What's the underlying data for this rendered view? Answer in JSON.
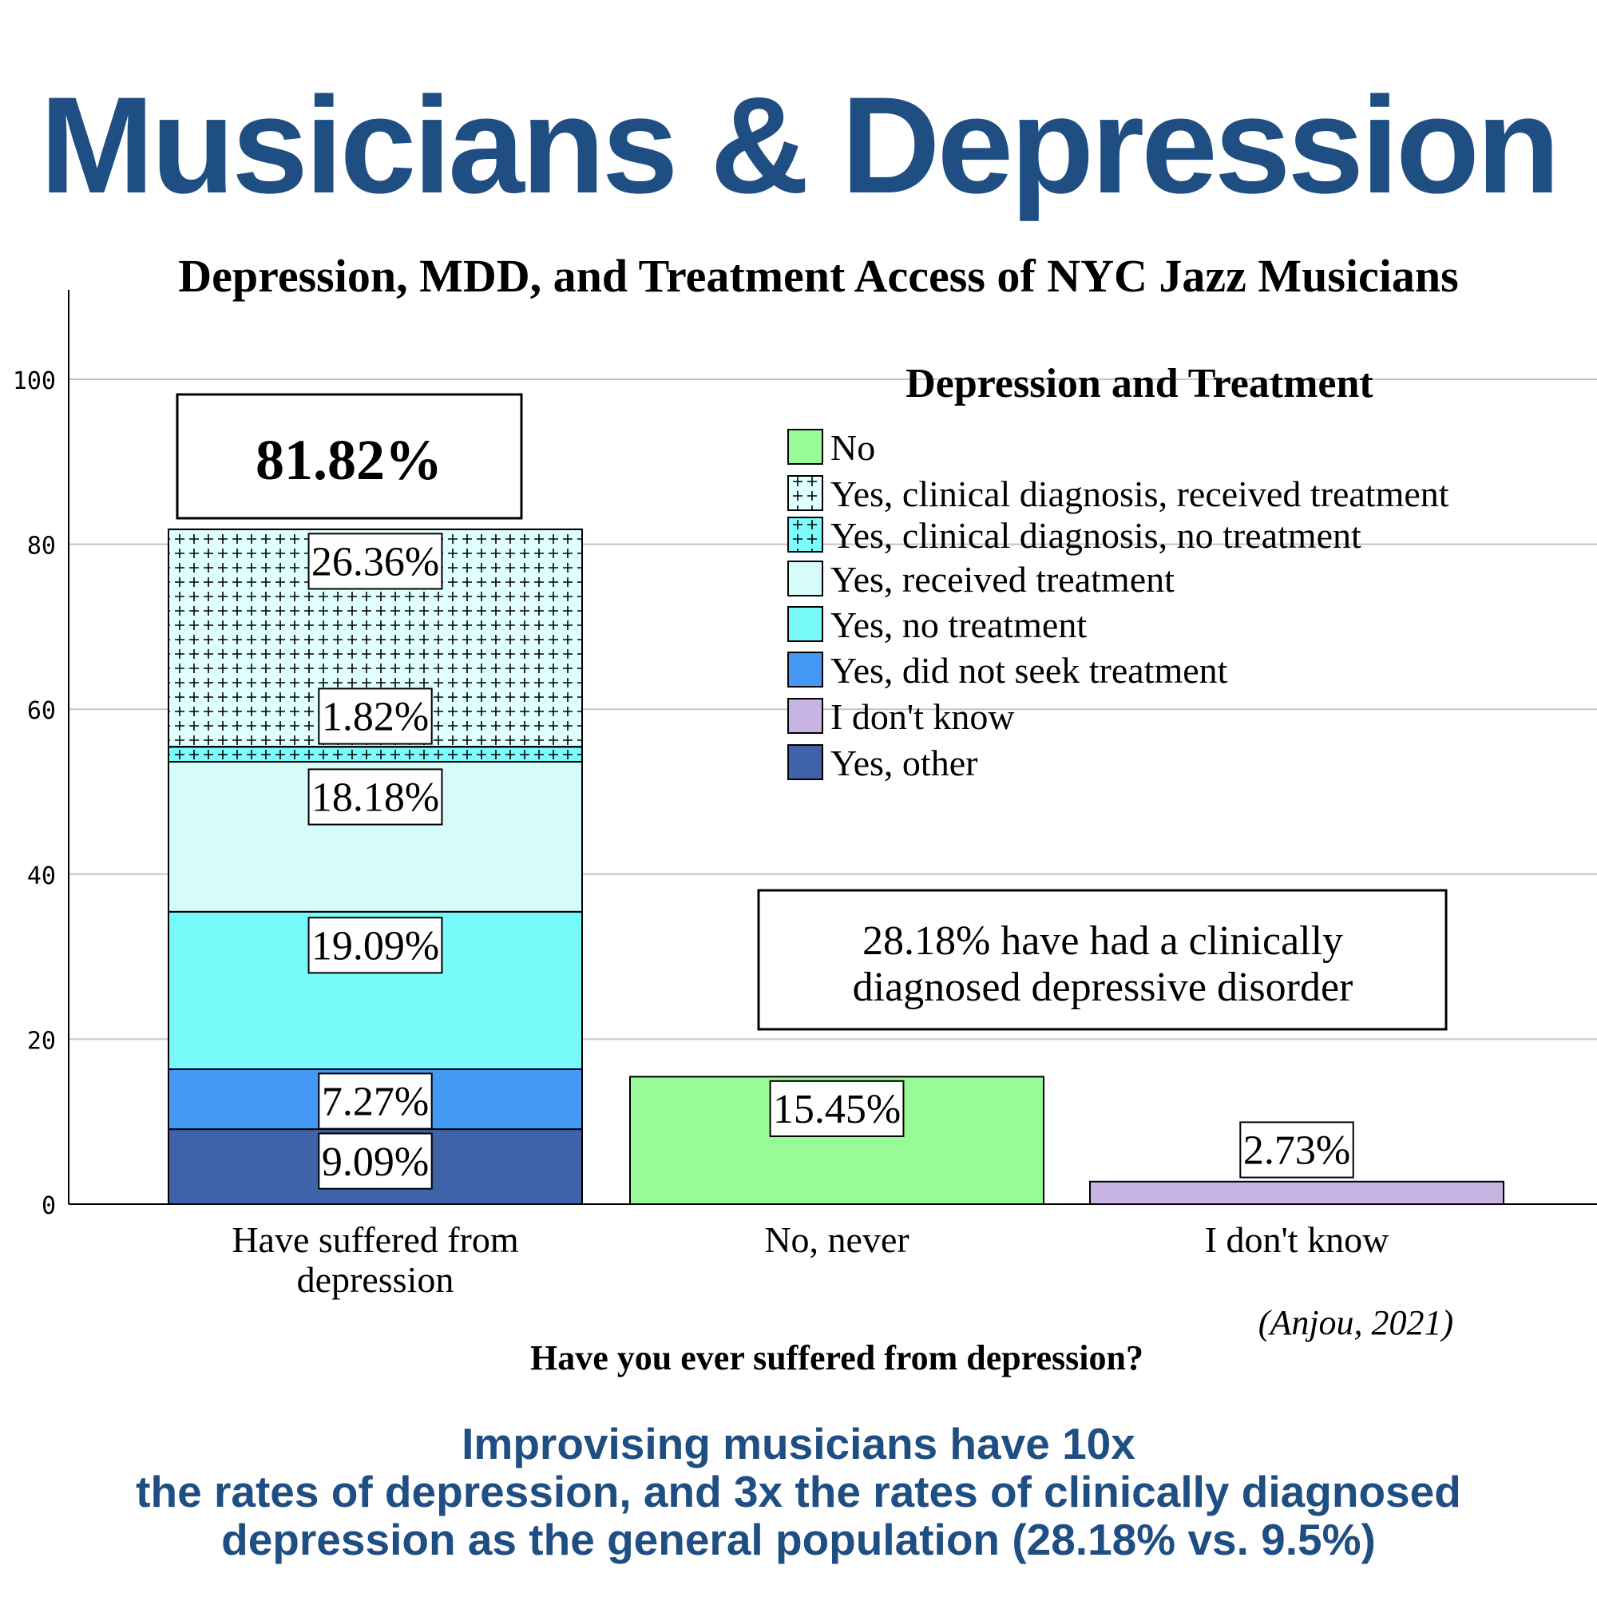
{
  "header": {
    "title": "Musicians & Depression"
  },
  "chart_data": {
    "type": "bar",
    "title": "Depression, MDD, and Treatment Access of NYC Jazz Musicians",
    "xlabel": "Have you ever suffered from depression?",
    "ylabel": "",
    "ylim": [
      0,
      110
    ],
    "yticks": [
      0,
      20,
      40,
      60,
      80,
      100
    ],
    "grid": true,
    "categories": [
      "Have suffered from depression",
      "No, never",
      "I don't know"
    ],
    "category_label_lines": [
      [
        "Have suffered from",
        "depression"
      ],
      [
        "No, never"
      ],
      [
        "I don't know"
      ]
    ],
    "legend_title": "Depression and Treatment",
    "legend_position": "top-right",
    "series": [
      {
        "name": "No",
        "color": "#98fb98",
        "pattern": "none",
        "values": [
          0,
          15.45,
          0
        ],
        "labels": [
          "",
          "15.45%",
          ""
        ]
      },
      {
        "name": "Yes, clinical diagnosis, received treatment",
        "color": "#e0ffff",
        "pattern": "plus",
        "values": [
          26.36,
          0,
          0
        ],
        "labels": [
          "26.36%",
          "",
          ""
        ]
      },
      {
        "name": "Yes, clinical diagnosis, no treatment",
        "color": "#7cfcfc",
        "pattern": "plus",
        "values": [
          1.82,
          0,
          0
        ],
        "labels": [
          "1.82%",
          "",
          ""
        ]
      },
      {
        "name": "Yes, received treatment",
        "color": "#d6fbfb",
        "pattern": "none",
        "values": [
          18.18,
          0,
          0
        ],
        "labels": [
          "18.18%",
          "",
          ""
        ]
      },
      {
        "name": "Yes, no treatment",
        "color": "#79fafa",
        "pattern": "none",
        "values": [
          19.09,
          0,
          0
        ],
        "labels": [
          "19.09%",
          "",
          ""
        ]
      },
      {
        "name": "Yes, did not seek treatment",
        "color": "#4499f5",
        "pattern": "none",
        "values": [
          7.27,
          0,
          0
        ],
        "labels": [
          "7.27%",
          "",
          ""
        ]
      },
      {
        "name": "I don't know",
        "color": "#c8b4e3",
        "pattern": "none",
        "values": [
          0,
          0,
          2.73
        ],
        "labels": [
          "",
          "",
          "2.73%"
        ]
      },
      {
        "name": "Yes, other",
        "color": "#3f63a8",
        "pattern": "none",
        "values": [
          9.09,
          0,
          0
        ],
        "labels": [
          "9.09%",
          "",
          ""
        ]
      }
    ],
    "stack_order": [
      "Yes, other",
      "Yes, did not seek treatment",
      "Yes, no treatment",
      "Yes, received treatment",
      "Yes, clinical diagnosis, no treatment",
      "Yes, clinical diagnosis, received treatment",
      "No",
      "I don't know"
    ],
    "total_label": "81.82%",
    "annotation": [
      "28.18% have had a clinically",
      "diagnosed depressive disorder"
    ],
    "citation": "(Anjou, 2021)"
  },
  "footer": {
    "lines": [
      "Improvising musicians have 10x",
      "the rates of depression, and 3x the rates of clinically diagnosed",
      "depression as the general population (28.18% vs. 9.5%)"
    ]
  }
}
